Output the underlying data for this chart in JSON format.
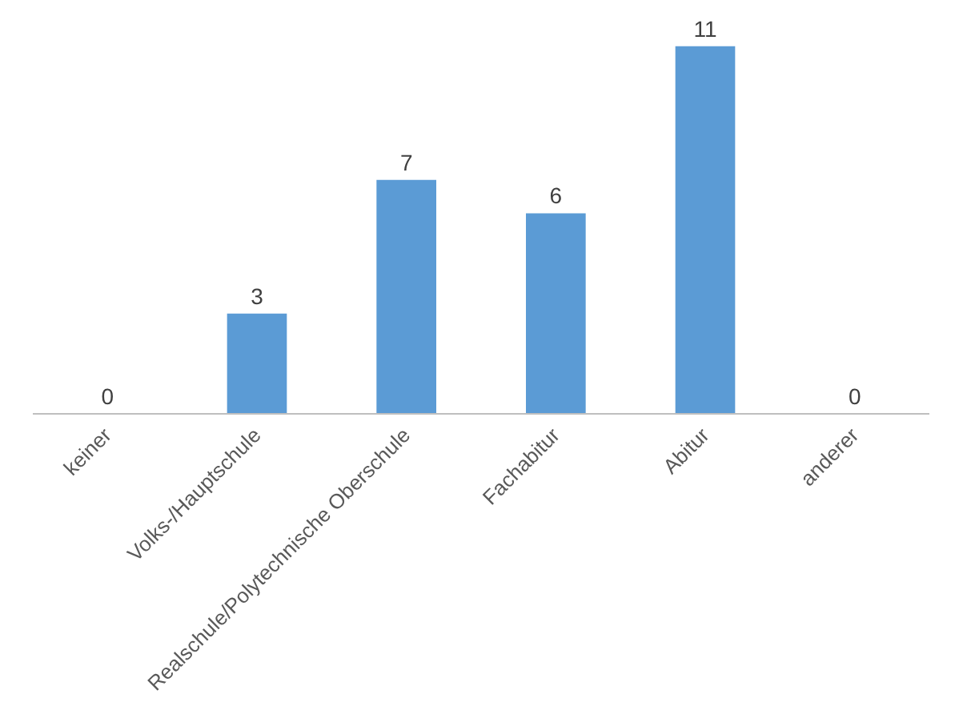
{
  "chart_data": {
    "type": "bar",
    "categories": [
      "keiner",
      "Volks-/Hauptschule",
      "Realschule/Polytechnische Oberschule",
      "Fachabitur",
      "Abitur",
      "anderer"
    ],
    "values": [
      0,
      3,
      7,
      6,
      11,
      0
    ],
    "color": "#5b9bd5",
    "data_labels": true
  }
}
